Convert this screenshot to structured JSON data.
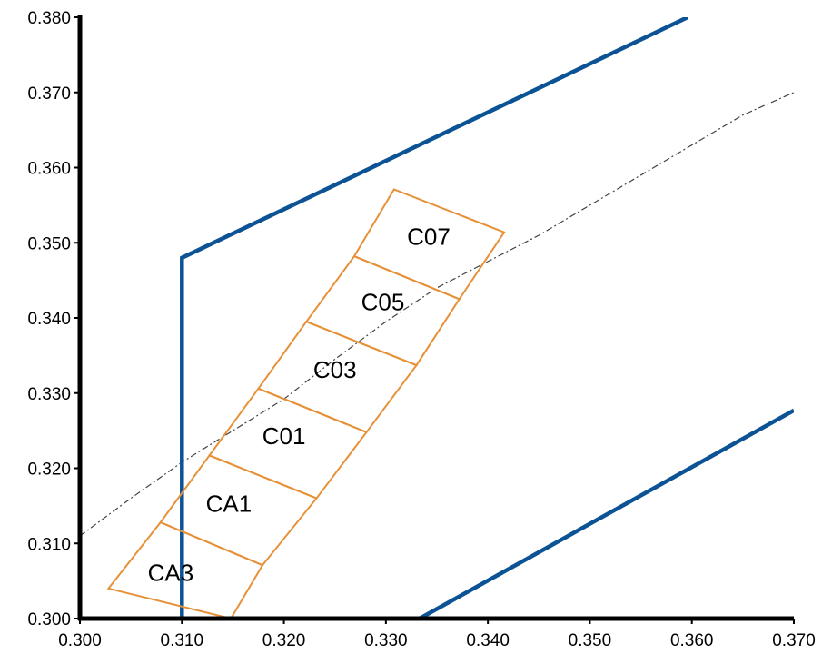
{
  "chart_data": {
    "type": "line",
    "x_ticks": [
      "0.300",
      "0.310",
      "0.320",
      "0.330",
      "0.340",
      "0.350",
      "0.360",
      "0.370"
    ],
    "y_ticks": [
      "0.300",
      "0.310",
      "0.320",
      "0.330",
      "0.340",
      "0.350",
      "0.360",
      "0.370",
      "0.380"
    ],
    "xlim": [
      0.3,
      0.37
    ],
    "ylim": [
      0.3,
      0.38
    ],
    "grid": false,
    "colors": {
      "boundary": "#0b5394",
      "bins": "#e69138",
      "locus": "#444444"
    },
    "upper_boundary": [
      [
        0.31,
        0.3
      ],
      [
        0.31,
        0.348
      ],
      [
        0.3596,
        0.38
      ]
    ],
    "lower_boundary": [
      [
        0.3333,
        0.3
      ],
      [
        0.37,
        0.3277
      ]
    ],
    "locus_curve": [
      [
        0.3,
        0.311
      ],
      [
        0.305,
        0.316
      ],
      [
        0.31,
        0.3208
      ],
      [
        0.315,
        0.325
      ],
      [
        0.32,
        0.3292
      ],
      [
        0.325,
        0.3345
      ],
      [
        0.33,
        0.3395
      ],
      [
        0.335,
        0.344
      ],
      [
        0.34,
        0.3475
      ],
      [
        0.345,
        0.351
      ],
      [
        0.35,
        0.355
      ],
      [
        0.355,
        0.359
      ],
      [
        0.36,
        0.363
      ],
      [
        0.365,
        0.367
      ],
      [
        0.37,
        0.37
      ]
    ],
    "bins": [
      {
        "name": "CA3",
        "corners": [
          [
            0.3028,
            0.304
          ],
          [
            0.3079,
            0.3128
          ],
          [
            0.3179,
            0.3071
          ],
          [
            0.3148,
            0.3
          ]
        ]
      },
      {
        "name": "CA1",
        "corners": [
          [
            0.3079,
            0.3128
          ],
          [
            0.3127,
            0.3217
          ],
          [
            0.3232,
            0.316
          ],
          [
            0.3179,
            0.3071
          ]
        ]
      },
      {
        "name": "C01",
        "corners": [
          [
            0.3127,
            0.3217
          ],
          [
            0.3175,
            0.3306
          ],
          [
            0.3281,
            0.3248
          ],
          [
            0.3232,
            0.316
          ]
        ]
      },
      {
        "name": "C03",
        "corners": [
          [
            0.3175,
            0.3306
          ],
          [
            0.3222,
            0.3395
          ],
          [
            0.333,
            0.3337
          ],
          [
            0.3281,
            0.3248
          ]
        ]
      },
      {
        "name": "C05",
        "corners": [
          [
            0.3222,
            0.3395
          ],
          [
            0.3269,
            0.3482
          ],
          [
            0.3372,
            0.3425
          ],
          [
            0.333,
            0.3337
          ]
        ]
      },
      {
        "name": "C07",
        "corners": [
          [
            0.3269,
            0.3482
          ],
          [
            0.3308,
            0.3571
          ],
          [
            0.3416,
            0.3514
          ],
          [
            0.3372,
            0.3425
          ]
        ]
      }
    ],
    "bin_label_positions": [
      {
        "name": "CA3",
        "x": 0.3089,
        "y": 0.305
      },
      {
        "name": "CA1",
        "x": 0.3146,
        "y": 0.3142
      },
      {
        "name": "C01",
        "x": 0.32,
        "y": 0.3232
      },
      {
        "name": "C03",
        "x": 0.325,
        "y": 0.332
      },
      {
        "name": "C05",
        "x": 0.3297,
        "y": 0.341
      },
      {
        "name": "C07",
        "x": 0.3342,
        "y": 0.3497
      }
    ]
  }
}
